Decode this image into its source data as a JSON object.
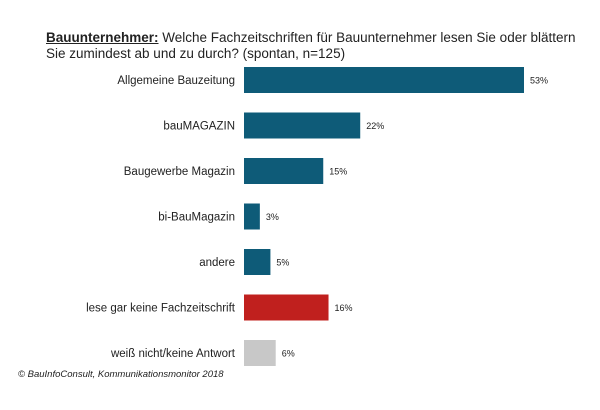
{
  "header": {
    "lead": "Bauunternehmer:",
    "question": " Welche Fachzeitschriften für Bauunternehmer lesen Sie oder blättern Sie zumindest ab und zu durch? (spontan, n=125)"
  },
  "footer": {
    "copyright": "© BauInfoConsult, Kommunikationsmonitor 2018"
  },
  "colors": {
    "default_bar": "#0e5b78",
    "highlight_bar": "#c0201e",
    "neutral_bar": "#c8c8c8"
  },
  "chart_data": {
    "type": "bar",
    "orientation": "horizontal",
    "categories": [
      "Allgemeine Bauzeitung",
      "bauMAGAZIN",
      "Baugewerbe Magazin",
      "bi-BauMagazin",
      "andere",
      "lese gar keine Fachzeitschrift",
      "weiß nicht/keine Antwort"
    ],
    "values": [
      53,
      22,
      15,
      3,
      5,
      16,
      6
    ],
    "value_labels": [
      "53%",
      "22%",
      "15%",
      "3%",
      "5%",
      "16%",
      "6%"
    ],
    "bar_colors": [
      "#0e5b78",
      "#0e5b78",
      "#0e5b78",
      "#0e5b78",
      "#0e5b78",
      "#c0201e",
      "#c8c8c8"
    ],
    "xlim": [
      0,
      53
    ],
    "grid": false,
    "legend": "none",
    "title": "Welche Fachzeitschriften für Bauunternehmer lesen Sie oder blättern Sie zumindest ab und zu durch? (spontan, n=125)",
    "xlabel": "",
    "ylabel": ""
  }
}
